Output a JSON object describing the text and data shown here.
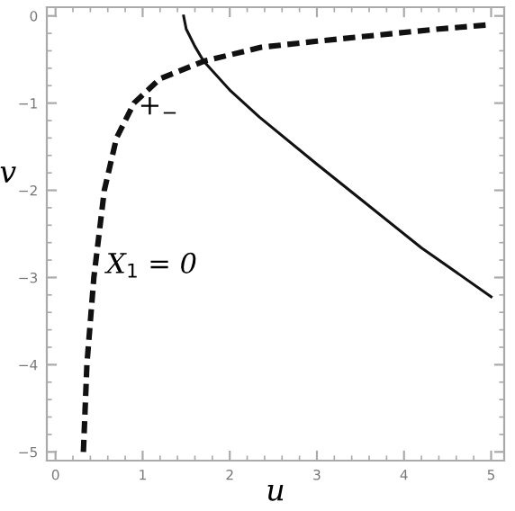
{
  "chart_data": {
    "type": "line",
    "xlabel": "u",
    "ylabel": "v",
    "xlim": [
      -0.1,
      5.15
    ],
    "ylim": [
      -5.1,
      0.1
    ],
    "xticks": [
      0,
      1,
      2,
      3,
      4,
      5
    ],
    "yticks": [
      -5,
      -4,
      -3,
      -2,
      -1,
      0
    ],
    "grid": false,
    "legend": false,
    "marker": "none",
    "series": [
      {
        "line_style": "dashed",
        "color": "#111111",
        "x": [
          0.32,
          0.36,
          0.44,
          0.56,
          0.7,
          0.9,
          1.2,
          1.7,
          2.36,
          3.0,
          3.7,
          4.4,
          5.0
        ],
        "values": [
          -5,
          -4,
          -3,
          -2,
          -1.4,
          -1,
          -0.72,
          -0.52,
          -0.36,
          -0.29,
          -0.22,
          -0.15,
          -0.1
        ]
      },
      {
        "line_style": "solid",
        "color": "#111111",
        "x": [
          1.47,
          1.5,
          1.6,
          1.7,
          2.0,
          2.34,
          3.0,
          3.5,
          4.2,
          5.0
        ],
        "values": [
          0,
          -0.15,
          -0.35,
          -0.52,
          -0.85,
          -1.16,
          -1.7,
          -2.1,
          -2.66,
          -3.22
        ]
      }
    ],
    "annotations": [
      "+$_{−}$",
      "X$_{1}$ = 0"
    ]
  }
}
